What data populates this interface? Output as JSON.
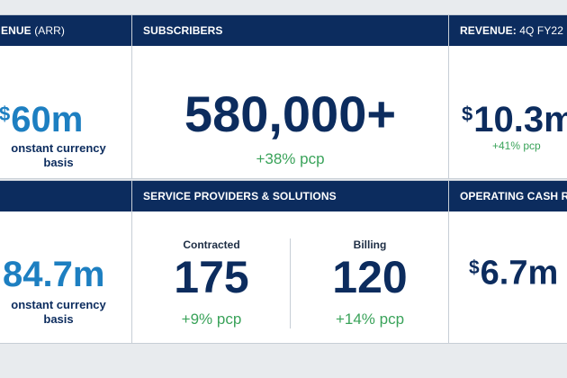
{
  "panels": {
    "arr": {
      "header": "ENUE",
      "header_suffix": "(ARR)",
      "value_symbol": "$",
      "value": "60m",
      "caption_line1": "onstant currency",
      "caption_line2": "basis"
    },
    "subscribers": {
      "header": "SUBSCRIBERS",
      "value": "580,000+",
      "change": "+38% pcp"
    },
    "revenue_q": {
      "header": "REVENUE:",
      "header_suffix": "4Q FY22",
      "value_symbol": "$",
      "value": "10.3m",
      "change": "+41% pcp"
    },
    "revenue_fy": {
      "value": "84.7m",
      "caption_line1": "onstant currency",
      "caption_line2": "basis"
    },
    "service_providers": {
      "header": "SERVICE PROVIDERS & SOLUTIONS",
      "left_label": "Contracted",
      "left_value": "175",
      "left_change": "+9% pcp",
      "right_label": "Billing",
      "right_value": "120",
      "right_change": "+14% pcp"
    },
    "operating_cash": {
      "header": "OPERATING CASH R",
      "value_symbol": "$",
      "value": "6.7m"
    }
  }
}
